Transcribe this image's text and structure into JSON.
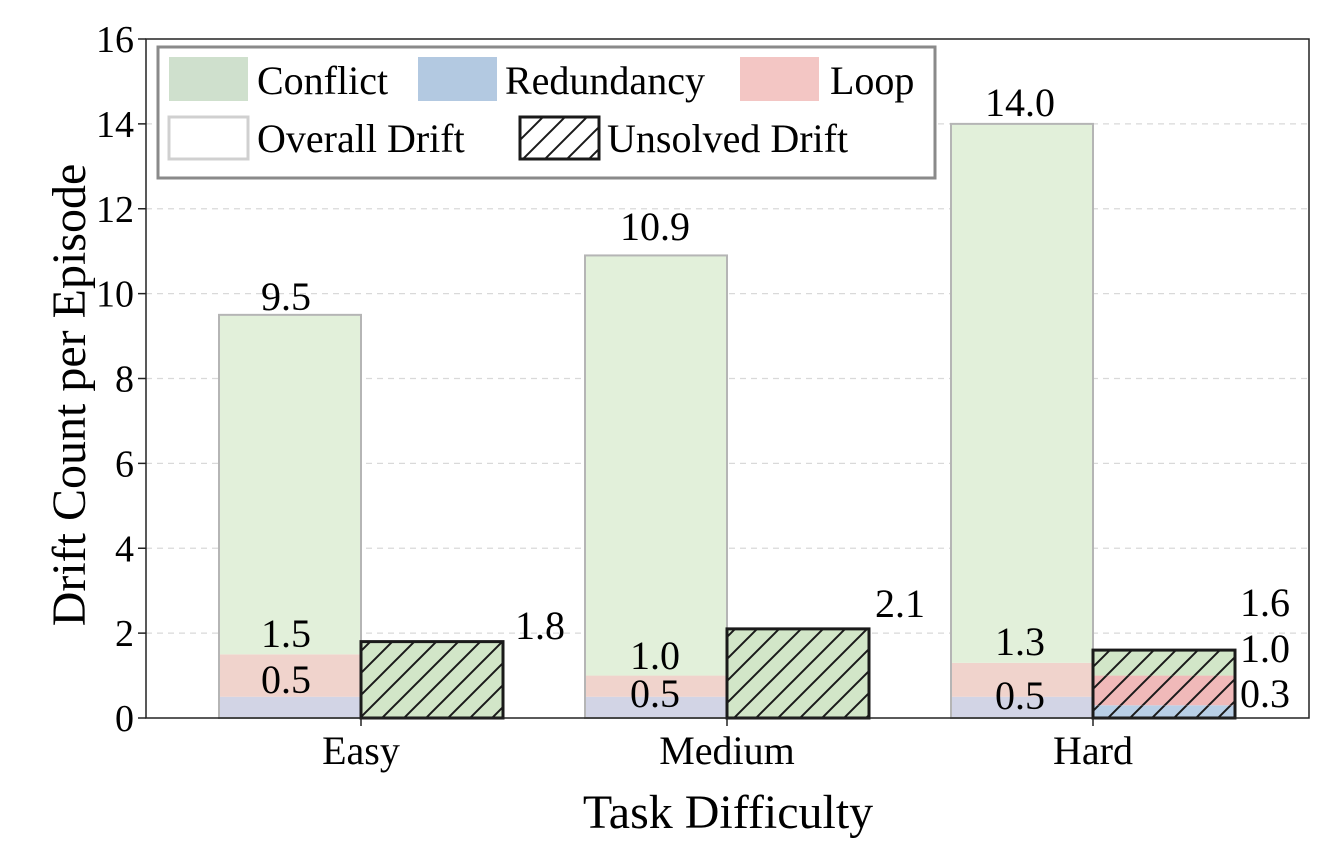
{
  "chart_data": {
    "type": "bar",
    "title": "",
    "xlabel": "Task Difficulty",
    "ylabel": "Drift Count per Episode",
    "ylim": [
      0,
      16
    ],
    "yticks": [
      0,
      2,
      4,
      6,
      8,
      10,
      12,
      14,
      16
    ],
    "grid": "horizontal dashed",
    "legend_position": "top-left",
    "stacked": true,
    "categories": [
      "Easy",
      "Medium",
      "Hard"
    ],
    "series": [
      {
        "name": "Overall Drift",
        "group": "overall",
        "components": [
          {
            "name": "Redundancy",
            "values": [
              0.5,
              0.5,
              0.5
            ]
          },
          {
            "name": "Loop",
            "values": [
              1.0,
              0.5,
              0.8
            ]
          },
          {
            "name": "Conflict",
            "values": [
              8.0,
              9.9,
              12.7
            ]
          }
        ],
        "cumulative_labels": [
          [
            "0.5",
            "1.5",
            "9.5"
          ],
          [
            "0.5",
            "1.0",
            "10.9"
          ],
          [
            "0.5",
            "1.3",
            "14.0"
          ]
        ]
      },
      {
        "name": "Unsolved Drift",
        "group": "unsolved",
        "components": [
          {
            "name": "Redundancy",
            "values": [
              0.0,
              0.0,
              0.3
            ]
          },
          {
            "name": "Loop",
            "values": [
              0.0,
              0.0,
              0.7
            ]
          },
          {
            "name": "Conflict",
            "values": [
              1.8,
              2.1,
              0.6
            ]
          }
        ],
        "cumulative_labels": [
          [
            "1.8"
          ],
          [
            "2.1"
          ],
          [
            "0.3",
            "1.0",
            "1.6"
          ]
        ]
      }
    ],
    "legend": [
      {
        "label": "Conflict",
        "color": "#cfe0cd",
        "style": "solid"
      },
      {
        "label": "Redundancy",
        "color": "#b3c9e1",
        "style": "solid"
      },
      {
        "label": "Loop",
        "color": "#f3c6c4",
        "style": "solid"
      },
      {
        "label": "Overall Drift",
        "color": "#ffffff",
        "style": "outline"
      },
      {
        "label": "Unsolved Drift",
        "color": "#ffffff",
        "style": "hatched"
      }
    ],
    "colors": {
      "conflict_overall": "#e2f0da",
      "redundancy_overall": "#d2d4e5",
      "loop_overall": "#f0d3cc",
      "conflict_unsolved": "#d2e6c8",
      "redundancy_unsolved": "#b9cfe6",
      "loop_unsolved": "#f0b9b9"
    }
  }
}
